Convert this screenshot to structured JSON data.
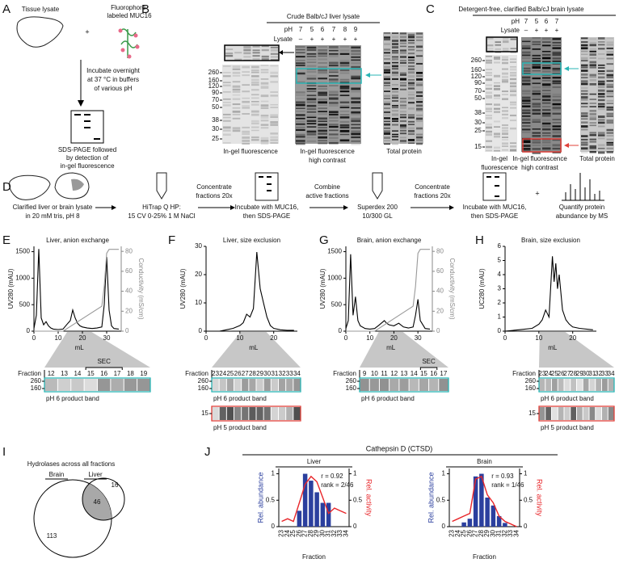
{
  "panel_letters": [
    "A",
    "B",
    "C",
    "D",
    "E",
    "F",
    "G",
    "H",
    "I",
    "J"
  ],
  "panel_a": {
    "tissue": "Tissue lysate",
    "probe": [
      "Fluorophore-",
      "labeled MUC16"
    ],
    "plus": "+",
    "incubate": [
      "Incubate overnight",
      "at 37 °C in buffers",
      "of various pH"
    ],
    "readout": [
      "SDS-PAGE followed",
      "by detection of",
      "in-gel fluorescence"
    ]
  },
  "panel_b": {
    "title": "Crude Balb/cJ liver lysate",
    "ph_label": "pH",
    "ph": [
      7,
      5,
      6,
      7,
      8,
      9
    ],
    "lysate_label": "Lysate",
    "lysate": [
      "–",
      "+",
      "+",
      "+",
      "+",
      "+"
    ],
    "mw": [
      260,
      160,
      120,
      90,
      70,
      50,
      38,
      30,
      25
    ],
    "captions": [
      [
        "In-gel fluorescence"
      ],
      [
        "In-gel fluorescence",
        "high contrast"
      ],
      [
        "Total protein"
      ]
    ]
  },
  "panel_c": {
    "title": "Detergent-free, clarified Balb/cJ brain lysate",
    "ph_label": "pH",
    "ph": [
      7,
      5,
      6,
      7
    ],
    "lysate_label": "Lysate",
    "lysate": [
      "–",
      "+",
      "+",
      "+"
    ],
    "mw": [
      260,
      160,
      120,
      90,
      70,
      50,
      38,
      30,
      25,
      15
    ],
    "captions": [
      [
        "In-gel",
        "fluorescence"
      ],
      [
        "In-gel fluorescence",
        "high contrast"
      ],
      [
        "Total protein"
      ]
    ]
  },
  "panel_d": {
    "steps": [
      [
        "Clarified liver or brain lysate",
        "in 20 mM tris, pH 8"
      ],
      [
        "HiTrap Q HP:",
        "15 CV 0-25% 1 M NaCl"
      ],
      [
        "Concentrate",
        "fractions 20x"
      ],
      [
        "Incubate with MUC16,",
        "then SDS-PAGE"
      ],
      [
        "Combine",
        "active fractions"
      ],
      [
        "Superdex 200",
        "10/300 GL"
      ],
      [
        "Concentrate",
        "fractions 20x"
      ],
      [
        "Incubate with MUC16,",
        "then SDS-PAGE"
      ],
      [
        "Quantify protein",
        "abundance by MS"
      ]
    ],
    "plus": "+"
  },
  "gel_strips": [
    {
      "fraction_label": "Fraction",
      "fractions": [
        12,
        13,
        14,
        15,
        16,
        17,
        18,
        19
      ],
      "sec": "SEC",
      "bands": [
        {
          "caption": "pH 6 product band",
          "mw": [
            260,
            160
          ]
        }
      ]
    },
    {
      "fraction_label": "Fraction",
      "fractions": [
        23,
        24,
        25,
        26,
        27,
        28,
        29,
        30,
        31,
        32,
        33,
        34
      ],
      "bands": [
        {
          "caption": "pH 6 product band",
          "mw": [
            260,
            160
          ]
        },
        {
          "caption": "pH 5 product band",
          "mw": [
            15
          ]
        }
      ]
    },
    {
      "fraction_label": "Fraction",
      "fractions": [
        9,
        10,
        11,
        12,
        13,
        14,
        15,
        16,
        17
      ],
      "sec": "SEC",
      "bands": [
        {
          "caption": "pH 6 product band",
          "mw": [
            260,
            160
          ]
        }
      ]
    },
    {
      "fraction_label": "Fraction",
      "fractions": [
        23,
        24,
        25,
        26,
        27,
        28,
        29,
        30,
        31,
        32,
        33,
        34
      ],
      "bands": [
        {
          "caption": "pH 6 product band",
          "mw": [
            260,
            160
          ]
        },
        {
          "caption": "pH 5 product band",
          "mw": [
            15
          ]
        }
      ]
    }
  ],
  "panel_i": {
    "title": "Hydrolases across all fractions",
    "brain": "Brain",
    "liver": "Liver",
    "brain_only": 113,
    "both": 46,
    "liver_only": 16
  },
  "panel_j": {
    "title": "Cathepsin D (CTSD)"
  },
  "chart_data": [
    {
      "type": "line",
      "title": "Liver, anion exchange",
      "xlabel": "mL",
      "ylabel": "UV280 (mAU)",
      "y2label": "Conductivity (mS/cm)",
      "xlim": [
        0,
        36
      ],
      "ylim": [
        0,
        1600
      ],
      "y2lim": [
        0,
        85
      ],
      "xticks": [
        0,
        10,
        20,
        30
      ],
      "yticks": [
        0,
        500,
        1000,
        1500
      ],
      "y2ticks": [
        0,
        20,
        40,
        60,
        80
      ],
      "series": [
        {
          "color": "#000000",
          "x": [
            0,
            1,
            2,
            3,
            4,
            5,
            6,
            7,
            8,
            10,
            12,
            14,
            15,
            16,
            17,
            18,
            19,
            20,
            22,
            24,
            26,
            28,
            29,
            30,
            31,
            32,
            33,
            35
          ],
          "values": [
            50,
            300,
            1550,
            250,
            120,
            180,
            100,
            60,
            40,
            30,
            40,
            150,
            200,
            400,
            250,
            150,
            100,
            80,
            60,
            50,
            60,
            80,
            500,
            1400,
            400,
            100,
            50,
            40
          ]
        },
        {
          "color": "#999999",
          "axis": "y2",
          "x": [
            0,
            12,
            28,
            29,
            30,
            31,
            33,
            35
          ],
          "values": [
            0,
            0,
            25,
            45,
            78,
            82,
            82,
            82
          ]
        }
      ]
    },
    {
      "type": "line",
      "title": "Liver, size exclusion",
      "xlabel": "mL",
      "ylabel": "UV280 (mAU)",
      "xlim": [
        0,
        27
      ],
      "ylim": [
        0,
        30
      ],
      "xticks": [
        0,
        10,
        20
      ],
      "yticks": [
        0,
        10,
        20,
        30
      ],
      "series": [
        {
          "color": "#000000",
          "x": [
            0,
            2,
            4,
            6,
            8,
            10,
            11,
            12,
            13,
            14,
            15,
            16,
            17,
            18,
            19,
            20,
            22,
            24,
            26
          ],
          "values": [
            0,
            0,
            0,
            0.5,
            1,
            2,
            3,
            6,
            5,
            8,
            28,
            15,
            10,
            5,
            2,
            1,
            0.5,
            0.3,
            0.3
          ]
        }
      ]
    },
    {
      "type": "line",
      "title": "Brain, anion exchange",
      "xlabel": "mL",
      "ylabel": "UV280 (mAU)",
      "y2label": "Conductivity (mS/cm)",
      "xlim": [
        0,
        36
      ],
      "ylim": [
        0,
        1600
      ],
      "y2lim": [
        0,
        85
      ],
      "xticks": [
        0,
        10,
        20,
        30
      ],
      "yticks": [
        0,
        500,
        1000,
        1500
      ],
      "y2ticks": [
        0,
        20,
        40,
        60,
        80
      ],
      "series": [
        {
          "color": "#000000",
          "x": [
            0,
            1,
            2,
            3,
            4,
            5,
            6,
            8,
            10,
            12,
            14,
            16,
            17,
            18,
            20,
            22,
            24,
            26,
            28,
            29,
            30,
            31,
            33,
            35
          ],
          "values": [
            50,
            200,
            1450,
            300,
            650,
            200,
            100,
            50,
            40,
            50,
            120,
            200,
            150,
            120,
            100,
            150,
            80,
            60,
            80,
            300,
            600,
            200,
            50,
            40
          ]
        },
        {
          "color": "#999999",
          "axis": "y2",
          "x": [
            0,
            12,
            28,
            29,
            30,
            31,
            33,
            35
          ],
          "values": [
            0,
            0,
            25,
            45,
            78,
            82,
            82,
            82
          ]
        }
      ]
    },
    {
      "type": "line",
      "title": "Brain, size exclusion",
      "xlabel": "mL",
      "ylabel": "UC280 (mAU)",
      "xlim": [
        0,
        27
      ],
      "ylim": [
        0,
        6
      ],
      "xticks": [
        0,
        10,
        20
      ],
      "yticks": [
        0,
        1,
        2,
        3,
        4,
        5,
        6
      ],
      "series": [
        {
          "color": "#000000",
          "x": [
            0,
            4,
            8,
            10,
            11,
            12,
            13,
            14,
            14.5,
            15,
            15.5,
            16,
            17,
            18,
            19,
            20,
            22,
            26
          ],
          "values": [
            0,
            0.1,
            0.2,
            0.5,
            0.8,
            1.5,
            1,
            5.3,
            3.5,
            4.8,
            3,
            4,
            1.5,
            0.8,
            0.5,
            0.3,
            0.2,
            0.1
          ]
        }
      ]
    },
    {
      "type": "bar",
      "title": "Liver",
      "xlabel": "Fraction",
      "ylabel": "Rel. abundance",
      "y2label": "Rel. activity",
      "categories": [
        23,
        24,
        25,
        26,
        27,
        28,
        29,
        30,
        31,
        32,
        33,
        34
      ],
      "ylim": [
        0,
        1.1
      ],
      "yticks": [
        0,
        0.5,
        1
      ],
      "y2lim": [
        0,
        1.1
      ],
      "y2ticks": [
        0,
        0.5,
        1
      ],
      "annotations": [
        "r = 0.92",
        "rank = 2/46"
      ],
      "series": [
        {
          "color": "#2b3f9e",
          "values": [
            0,
            0,
            0,
            0.3,
            1,
            0.87,
            0.65,
            0.45,
            0.45,
            0,
            0,
            0
          ]
        },
        {
          "color": "#e8262a",
          "type": "line",
          "axis": "y2",
          "values": [
            0.1,
            0.15,
            0.1,
            0.45,
            0.8,
            0.95,
            0.85,
            0.55,
            0.25,
            0.35,
            0.3,
            0.25
          ]
        }
      ]
    },
    {
      "type": "bar",
      "title": "Brain",
      "xlabel": "Fraction",
      "ylabel": "Rel. abundance",
      "y2label": "Rel. activity",
      "categories": [
        23,
        24,
        25,
        26,
        27,
        28,
        29,
        30,
        31,
        32,
        33,
        34
      ],
      "ylim": [
        0,
        1.1
      ],
      "yticks": [
        0,
        0.5,
        1
      ],
      "y2lim": [
        0,
        1.1
      ],
      "y2ticks": [
        0,
        0.5,
        1
      ],
      "annotations": [
        "r = 0.93",
        "rank = 1/46"
      ],
      "series": [
        {
          "color": "#2b3f9e",
          "values": [
            0,
            0,
            0.08,
            0.15,
            0.95,
            1,
            0.55,
            0.4,
            0.2,
            0.07,
            0,
            0
          ]
        },
        {
          "color": "#e8262a",
          "type": "line",
          "axis": "y2",
          "values": [
            0.1,
            0.15,
            0.2,
            0.25,
            0.9,
            0.95,
            0.6,
            0.45,
            0.2,
            0.1,
            0.05,
            0
          ]
        }
      ]
    }
  ]
}
